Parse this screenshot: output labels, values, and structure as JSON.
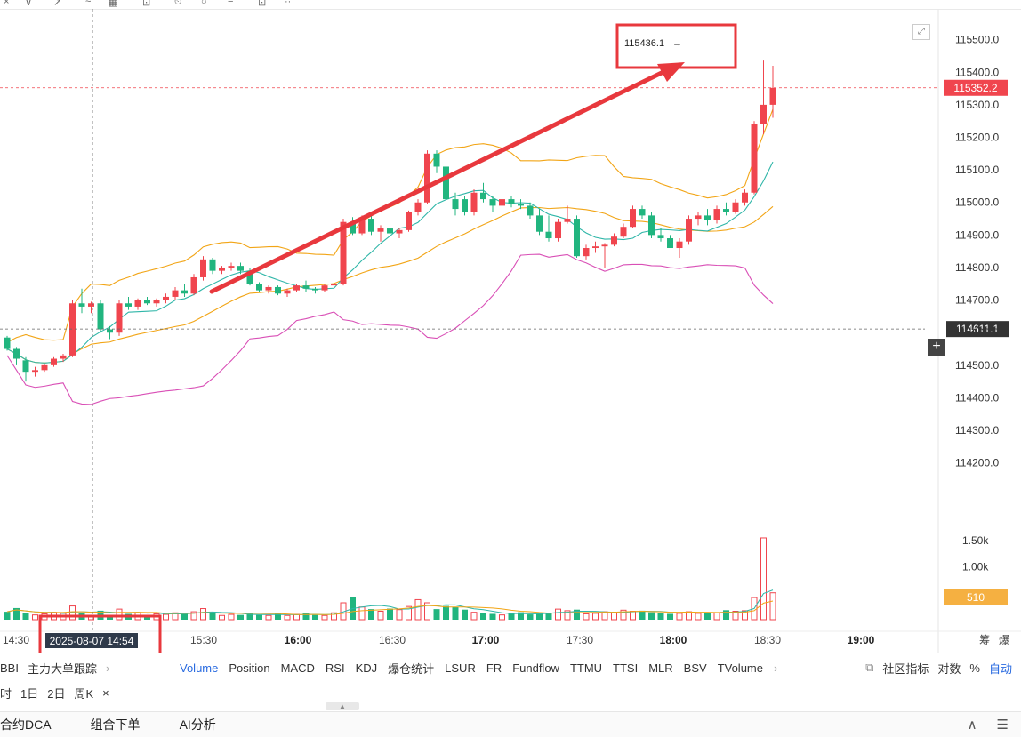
{
  "chart_data": {
    "type": "candlestick",
    "interval_minutes": 5,
    "price_axis": {
      "ticks": [
        "115500.0",
        "115400.0",
        "115300.0",
        "115200.0",
        "115100.0",
        "115000.0",
        "114900.0",
        "114800.0",
        "114700.0",
        "114600.0",
        "114500.0",
        "114400.0",
        "114300.0",
        "114200.0"
      ],
      "range": [
        114120,
        115540
      ]
    },
    "volume_axis": {
      "ticks": [
        "1.50k",
        "1.00k"
      ],
      "current_label": "510"
    },
    "time_axis": {
      "labels": [
        {
          "text": "14:30",
          "bold": false
        },
        {
          "text": "15:30",
          "bold": false
        },
        {
          "text": "16:00",
          "bold": true
        },
        {
          "text": "16:30",
          "bold": false
        },
        {
          "text": "17:00",
          "bold": true
        },
        {
          "text": "17:30",
          "bold": false
        },
        {
          "text": "18:00",
          "bold": true
        },
        {
          "text": "18:30",
          "bold": false
        },
        {
          "text": "19:00",
          "bold": true
        }
      ]
    },
    "current_price_label": "115352.2",
    "crosshair_price_label": "114611.1",
    "crosshair_time_label": "2025-08-07 14:54",
    "high_marker_label": "115436.1",
    "candles": [
      [
        114585,
        114590,
        114545,
        114550,
        150
      ],
      [
        114550,
        114556,
        114500,
        114520,
        220
      ],
      [
        114515,
        114525,
        114450,
        114480,
        130
      ],
      [
        114480,
        114495,
        114465,
        114485,
        90
      ],
      [
        114485,
        114505,
        114480,
        114500,
        110
      ],
      [
        114500,
        114525,
        114495,
        114520,
        140
      ],
      [
        114520,
        114535,
        114510,
        114530,
        120
      ],
      [
        114530,
        114700,
        114525,
        114690,
        260
      ],
      [
        114690,
        114735,
        114660,
        114680,
        120
      ],
      [
        114680,
        114695,
        114660,
        114690,
        80
      ],
      [
        114690,
        114700,
        114600,
        114610,
        170
      ],
      [
        114610,
        114620,
        114580,
        114600,
        90
      ],
      [
        114600,
        114700,
        114590,
        114690,
        200
      ],
      [
        114690,
        114710,
        114670,
        114680,
        110
      ],
      [
        114680,
        114705,
        114670,
        114700,
        130
      ],
      [
        114700,
        114710,
        114685,
        114690,
        90
      ],
      [
        114690,
        114705,
        114680,
        114700,
        110
      ],
      [
        114700,
        114720,
        114690,
        114710,
        100
      ],
      [
        114710,
        114740,
        114700,
        114730,
        130
      ],
      [
        114730,
        114750,
        114710,
        114720,
        120
      ],
      [
        114720,
        114780,
        114715,
        114770,
        150
      ],
      [
        114770,
        114835,
        114760,
        114825,
        210
      ],
      [
        114825,
        114830,
        114780,
        114790,
        120
      ],
      [
        114790,
        114805,
        114780,
        114800,
        80
      ],
      [
        114800,
        114815,
        114790,
        114805,
        100
      ],
      [
        114805,
        114815,
        114780,
        114790,
        90
      ],
      [
        114790,
        114800,
        114745,
        114750,
        120
      ],
      [
        114750,
        114755,
        114725,
        114730,
        90
      ],
      [
        114730,
        114745,
        114720,
        114740,
        80
      ],
      [
        114740,
        114745,
        114715,
        114720,
        110
      ],
      [
        114720,
        114735,
        114710,
        114730,
        80
      ],
      [
        114730,
        114750,
        114725,
        114745,
        100
      ],
      [
        114745,
        114760,
        114725,
        114735,
        120
      ],
      [
        114735,
        114740,
        114720,
        114730,
        90
      ],
      [
        114730,
        114750,
        114725,
        114745,
        80
      ],
      [
        114745,
        114755,
        114735,
        114750,
        130
      ],
      [
        114750,
        114950,
        114745,
        114940,
        320
      ],
      [
        114940,
        114955,
        114900,
        114905,
        430
      ],
      [
        114905,
        114960,
        114900,
        114950,
        240
      ],
      [
        114950,
        114960,
        114900,
        114910,
        200
      ],
      [
        114910,
        114930,
        114880,
        114920,
        160
      ],
      [
        114920,
        114935,
        114895,
        114905,
        210
      ],
      [
        114905,
        114920,
        114890,
        114915,
        190
      ],
      [
        114915,
        114975,
        114910,
        114970,
        250
      ],
      [
        114970,
        115010,
        114960,
        115000,
        380
      ],
      [
        115000,
        115160,
        114995,
        115150,
        320
      ],
      [
        115150,
        115160,
        115090,
        115110,
        200
      ],
      [
        115110,
        115115,
        115000,
        115010,
        260
      ],
      [
        115010,
        115030,
        114960,
        114980,
        240
      ],
      [
        115010,
        115020,
        114960,
        114970,
        190
      ],
      [
        114970,
        115040,
        114960,
        115030,
        140
      ],
      [
        115030,
        115060,
        115000,
        115010,
        120
      ],
      [
        115010,
        115020,
        114970,
        114990,
        110
      ],
      [
        114990,
        115020,
        114965,
        115010,
        90
      ],
      [
        115010,
        115020,
        114985,
        114995,
        120
      ],
      [
        114995,
        115010,
        114980,
        114990,
        140
      ],
      [
        114990,
        115000,
        114950,
        114960,
        100
      ],
      [
        114960,
        114980,
        114900,
        114910,
        110
      ],
      [
        114910,
        114960,
        114880,
        114890,
        130
      ],
      [
        114890,
        114950,
        114880,
        114940,
        200
      ],
      [
        114940,
        114990,
        114935,
        114950,
        170
      ],
      [
        114950,
        114960,
        114830,
        114835,
        190
      ],
      [
        114835,
        114870,
        114825,
        114860,
        110
      ],
      [
        114860,
        114880,
        114845,
        114865,
        120
      ],
      [
        114865,
        114875,
        114800,
        114870,
        150
      ],
      [
        114870,
        114905,
        114865,
        114895,
        140
      ],
      [
        114895,
        114935,
        114890,
        114925,
        180
      ],
      [
        114925,
        114990,
        114920,
        114980,
        160
      ],
      [
        114980,
        114990,
        114950,
        114960,
        170
      ],
      [
        114960,
        114970,
        114890,
        114900,
        140
      ],
      [
        114900,
        114920,
        114880,
        114890,
        130
      ],
      [
        114890,
        114900,
        114860,
        114860,
        110
      ],
      [
        114860,
        114890,
        114830,
        114880,
        120
      ],
      [
        114880,
        114960,
        114870,
        114950,
        150
      ],
      [
        114950,
        114970,
        114930,
        114960,
        120
      ],
      [
        114960,
        114980,
        114930,
        114945,
        140
      ],
      [
        114945,
        114990,
        114935,
        114980,
        130
      ],
      [
        114980,
        115000,
        114960,
        114970,
        180
      ],
      [
        114970,
        115010,
        114965,
        115000,
        160
      ],
      [
        115000,
        115040,
        114990,
        115030,
        170
      ],
      [
        115030,
        115250,
        115025,
        115240,
        420
      ],
      [
        115240,
        115436,
        115210,
        115300,
        1550
      ],
      [
        115300,
        115420,
        115260,
        115352,
        510
      ]
    ]
  },
  "top_toolbar": {
    "items": [
      "×",
      "∨",
      "↗",
      "~",
      "▦",
      "⊡",
      "⏲",
      "○",
      "−",
      "⊡",
      "··"
    ]
  },
  "indicator_bar": {
    "left_items": [
      "BBI",
      "主力大单跟踪"
    ],
    "tabs": [
      "Volume",
      "Position",
      "MACD",
      "RSI",
      "KDJ",
      "爆仓统计",
      "LSUR",
      "FR",
      "Fundflow",
      "TTMU",
      "TTSI",
      "MLR",
      "BSV",
      "TVolume"
    ],
    "active_tab": "Volume",
    "right_items": [
      "社区指标",
      "对数",
      "%",
      "自动"
    ]
  },
  "period_bar": {
    "items": [
      "时",
      "1日",
      "2日",
      "周K",
      "×"
    ]
  },
  "bottom_bar": {
    "items": [
      "合约DCA",
      "组合下单",
      "AI分析"
    ],
    "right_items": [
      "∧",
      "☰"
    ]
  },
  "axis_extra": [
    "筹",
    "爆"
  ],
  "colors": {
    "up": "#f0454e",
    "down": "#21b57f",
    "annotation": "#e8383d",
    "current_price_bg": "#f0454e",
    "volume_label_bg": "#f5b041"
  }
}
